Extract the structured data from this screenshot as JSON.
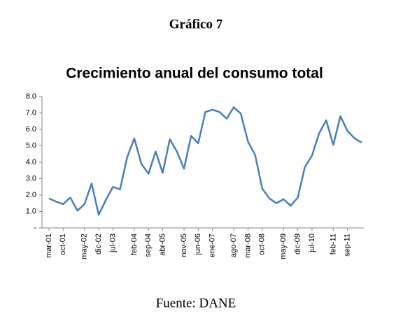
{
  "header": "Gráfico 7",
  "chart_data": {
    "type": "line",
    "title": "Crecimiento anual del consumo total",
    "categories": [
      "mar-01",
      null,
      "oct-01",
      null,
      null,
      "may-02",
      null,
      "dic-02",
      null,
      "jul-03",
      null,
      null,
      "feb-04",
      null,
      "sep-04",
      null,
      "abr-05",
      null,
      null,
      "nov-05",
      null,
      "jun-06",
      null,
      "ene-07",
      null,
      null,
      "ago-07",
      null,
      "mar-08",
      null,
      "oct-08",
      null,
      null,
      "may-09",
      null,
      "dic-09",
      null,
      "jul-10",
      null,
      null,
      "feb-11",
      null,
      "sep-11",
      null,
      null
    ],
    "values": [
      1.8,
      1.6,
      1.45,
      1.85,
      1.05,
      1.45,
      2.7,
      0.8,
      1.7,
      2.5,
      2.35,
      4.3,
      5.45,
      3.9,
      3.3,
      4.65,
      3.35,
      5.4,
      4.65,
      3.6,
      5.6,
      5.15,
      7.05,
      7.2,
      7.05,
      6.65,
      7.35,
      6.95,
      5.25,
      4.45,
      2.4,
      1.8,
      1.5,
      1.75,
      1.35,
      1.85,
      3.7,
      4.4,
      5.75,
      6.55,
      5.05,
      6.8,
      5.9,
      5.45,
      5.2
    ],
    "color": "#4a7ebb",
    "ylim": [
      0,
      8
    ],
    "yticks": [
      {
        "value": 0,
        "label": "-"
      },
      {
        "value": 1,
        "label": "1.0"
      },
      {
        "value": 2,
        "label": "2.0"
      },
      {
        "value": 3,
        "label": "3.0"
      },
      {
        "value": 4,
        "label": "4.0"
      },
      {
        "value": 5,
        "label": "5.0"
      },
      {
        "value": 6,
        "label": "6.0"
      },
      {
        "value": 7,
        "label": "7.0"
      },
      {
        "value": 8,
        "label": "8.0"
      }
    ],
    "grid": false
  },
  "source": "Fuente: DANE"
}
